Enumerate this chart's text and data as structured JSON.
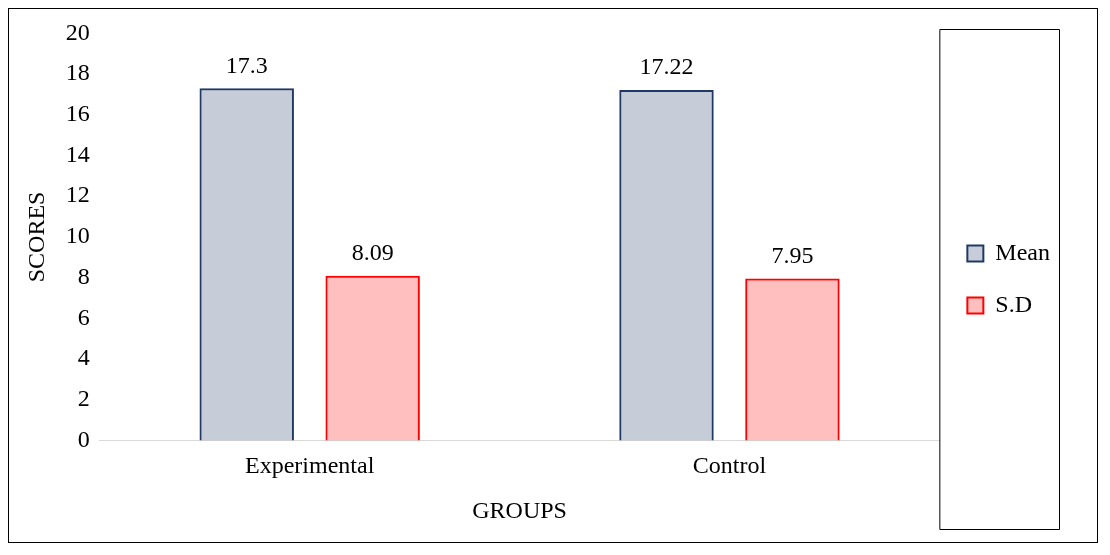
{
  "chart_data": {
    "type": "bar",
    "xlabel": "GROUPS",
    "ylabel": "SCORES",
    "categories": [
      "Experimental",
      "Control"
    ],
    "series": [
      {
        "name": "Mean",
        "color": "#203864",
        "values": [
          17.3,
          17.22
        ]
      },
      {
        "name": "S.D",
        "color": "#ff0000",
        "values": [
          8.09,
          7.95
        ]
      }
    ],
    "ylim": [
      0,
      20
    ],
    "yticks": [
      0,
      2,
      4,
      6,
      8,
      10,
      12,
      14,
      16,
      18,
      20
    ],
    "grid": false,
    "legend": "right",
    "data_labels": true
  }
}
